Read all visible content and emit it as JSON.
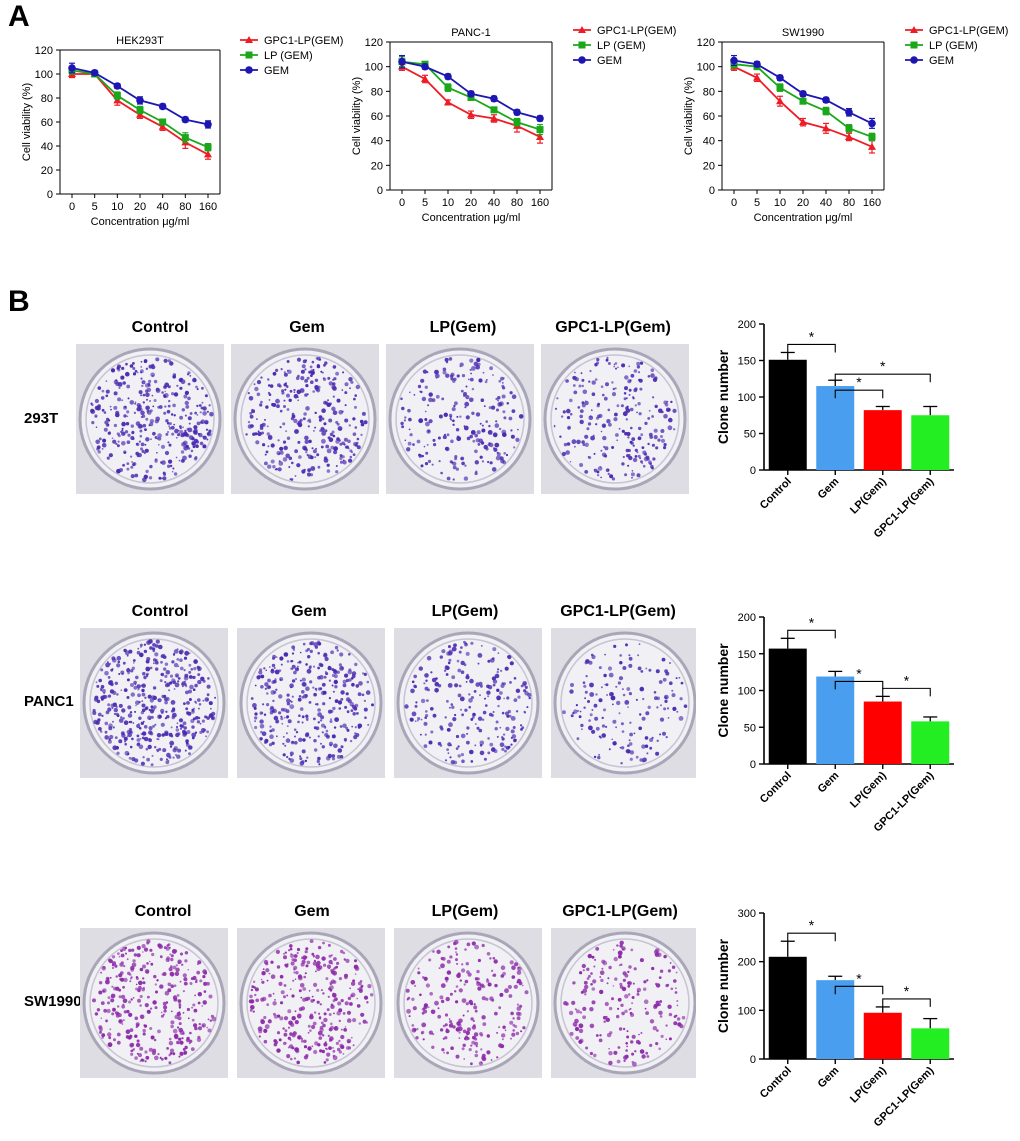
{
  "panel_a_label": "A",
  "panel_b_label": "B",
  "colors": {
    "gpc1": "#ee1c24",
    "lp_line": "#1aa81a",
    "gem_line": "#1d16b3",
    "bar_control": "#000000",
    "bar_gem": "#4a9ef0",
    "bar_lp": "#ff0000",
    "bar_gpc1": "#22ee22",
    "plate_bg": "#dedde3",
    "colony_purple": "#4a2bb0",
    "colony_magenta": "#8c2ba8"
  },
  "plate_columns": [
    "Control",
    "Gem",
    "LP(Gem)",
    "GPC1-LP(Gem)"
  ],
  "row_labels": [
    "293T",
    "PANC1",
    "SW1990"
  ],
  "chart_data": [
    {
      "type": "line",
      "title": "HEK293T",
      "xlabel": "Concentration μg/ml",
      "ylabel": "Cell viability (%)",
      "categories": [
        "0",
        "5",
        "10",
        "20",
        "40",
        "80",
        "160"
      ],
      "ylim": [
        0,
        120
      ],
      "yticks": [
        "0",
        "20",
        "40",
        "60",
        "80",
        "100",
        "120"
      ],
      "series": [
        {
          "name": "GPC1-LP(GEM)",
          "color": "#ee1c24",
          "marker": "triangle",
          "values": [
            100,
            100,
            78,
            66,
            56,
            43,
            33
          ],
          "errors": [
            3,
            2,
            4,
            3,
            3,
            5,
            4
          ]
        },
        {
          "name": "LP (GEM)",
          "color": "#1aa81a",
          "marker": "square",
          "values": [
            103,
            100,
            82,
            70,
            60,
            47,
            39
          ],
          "errors": [
            3,
            2,
            3,
            3,
            2,
            4,
            3
          ]
        },
        {
          "name": "GEM",
          "color": "#1d16b3",
          "marker": "circle",
          "values": [
            105,
            101,
            90,
            78,
            73,
            62,
            58
          ],
          "errors": [
            4,
            2,
            2,
            3,
            2,
            2,
            3
          ]
        }
      ]
    },
    {
      "type": "line",
      "title": "PANC-1",
      "xlabel": "Concentration μg/ml",
      "ylabel": "Cell viability (%)",
      "categories": [
        "0",
        "5",
        "10",
        "20",
        "40",
        "80",
        "160"
      ],
      "ylim": [
        0,
        120
      ],
      "yticks": [
        "0",
        "20",
        "40",
        "60",
        "80",
        "100",
        "120"
      ],
      "series": [
        {
          "name": "GPC1-LP(GEM)",
          "color": "#ee1c24",
          "marker": "triangle",
          "values": [
            100,
            90,
            71,
            61,
            58,
            52,
            43
          ],
          "errors": [
            3,
            3,
            2,
            3,
            3,
            5,
            5
          ]
        },
        {
          "name": "LP (GEM)",
          "color": "#1aa81a",
          "marker": "square",
          "values": [
            104,
            102,
            83,
            75,
            65,
            55,
            49
          ],
          "errors": [
            4,
            2,
            3,
            2,
            2,
            3,
            4
          ]
        },
        {
          "name": "GEM",
          "color": "#1d16b3",
          "marker": "circle",
          "values": [
            104,
            100,
            92,
            78,
            74,
            63,
            58
          ],
          "errors": [
            5,
            2,
            2,
            2,
            2,
            2,
            2
          ]
        }
      ]
    },
    {
      "type": "line",
      "title": "SW1990",
      "xlabel": "Concentration μg/ml",
      "ylabel": "Cell viability (%)",
      "categories": [
        "0",
        "5",
        "10",
        "20",
        "40",
        "80",
        "160"
      ],
      "ylim": [
        0,
        120
      ],
      "yticks": [
        "0",
        "20",
        "40",
        "60",
        "80",
        "100",
        "120"
      ],
      "series": [
        {
          "name": "GPC1-LP(GEM)",
          "color": "#ee1c24",
          "marker": "triangle",
          "values": [
            100,
            91,
            72,
            55,
            50,
            43,
            35
          ],
          "errors": [
            3,
            3,
            4,
            3,
            4,
            3,
            5
          ]
        },
        {
          "name": "LP (GEM)",
          "color": "#1aa81a",
          "marker": "square",
          "values": [
            102,
            100,
            83,
            72,
            64,
            50,
            43
          ],
          "errors": [
            3,
            2,
            3,
            2,
            3,
            3,
            3
          ]
        },
        {
          "name": "GEM",
          "color": "#1d16b3",
          "marker": "circle",
          "values": [
            105,
            102,
            91,
            78,
            73,
            63,
            54
          ],
          "errors": [
            4,
            2,
            2,
            2,
            2,
            3,
            4
          ]
        }
      ]
    },
    {
      "type": "bar",
      "row": "293T",
      "ylabel": "Clone number",
      "categories": [
        "Control",
        "Gem",
        "LP(Gem)",
        "GPC1-LP(Gem)"
      ],
      "values": [
        151,
        115,
        82,
        75
      ],
      "errors": [
        10,
        8,
        5,
        12
      ],
      "ylim": [
        0,
        200
      ],
      "yticks": [
        "0",
        "50",
        "100",
        "150",
        "200"
      ],
      "significance": [
        {
          "from": 0,
          "to": 1,
          "label": "*"
        },
        {
          "from": 1,
          "to": 2,
          "label": "*"
        },
        {
          "from": 1,
          "to": 3,
          "label": "*"
        }
      ]
    },
    {
      "type": "bar",
      "row": "PANC1",
      "ylabel": "Clone number",
      "categories": [
        "Control",
        "Gem",
        "LP(Gem)",
        "GPC1-LP(Gem)"
      ],
      "values": [
        157,
        119,
        85,
        58
      ],
      "errors": [
        14,
        7,
        7,
        6
      ],
      "ylim": [
        0,
        200
      ],
      "yticks": [
        "0",
        "50",
        "100",
        "150",
        "200"
      ],
      "significance": [
        {
          "from": 0,
          "to": 1,
          "label": "*"
        },
        {
          "from": 1,
          "to": 2,
          "label": "*"
        },
        {
          "from": 2,
          "to": 3,
          "label": "*"
        }
      ]
    },
    {
      "type": "bar",
      "row": "SW1990",
      "ylabel": "Clone number",
      "categories": [
        "Control",
        "Gem",
        "LP(Gem)",
        "GPC1-LP(Gem)"
      ],
      "values": [
        210,
        162,
        95,
        63
      ],
      "errors": [
        32,
        8,
        12,
        20
      ],
      "ylim": [
        0,
        300
      ],
      "yticks": [
        "0",
        "100",
        "200",
        "300"
      ],
      "significance": [
        {
          "from": 0,
          "to": 1,
          "label": "*"
        },
        {
          "from": 1,
          "to": 2,
          "label": "*"
        },
        {
          "from": 2,
          "to": 3,
          "label": "*"
        }
      ]
    }
  ]
}
